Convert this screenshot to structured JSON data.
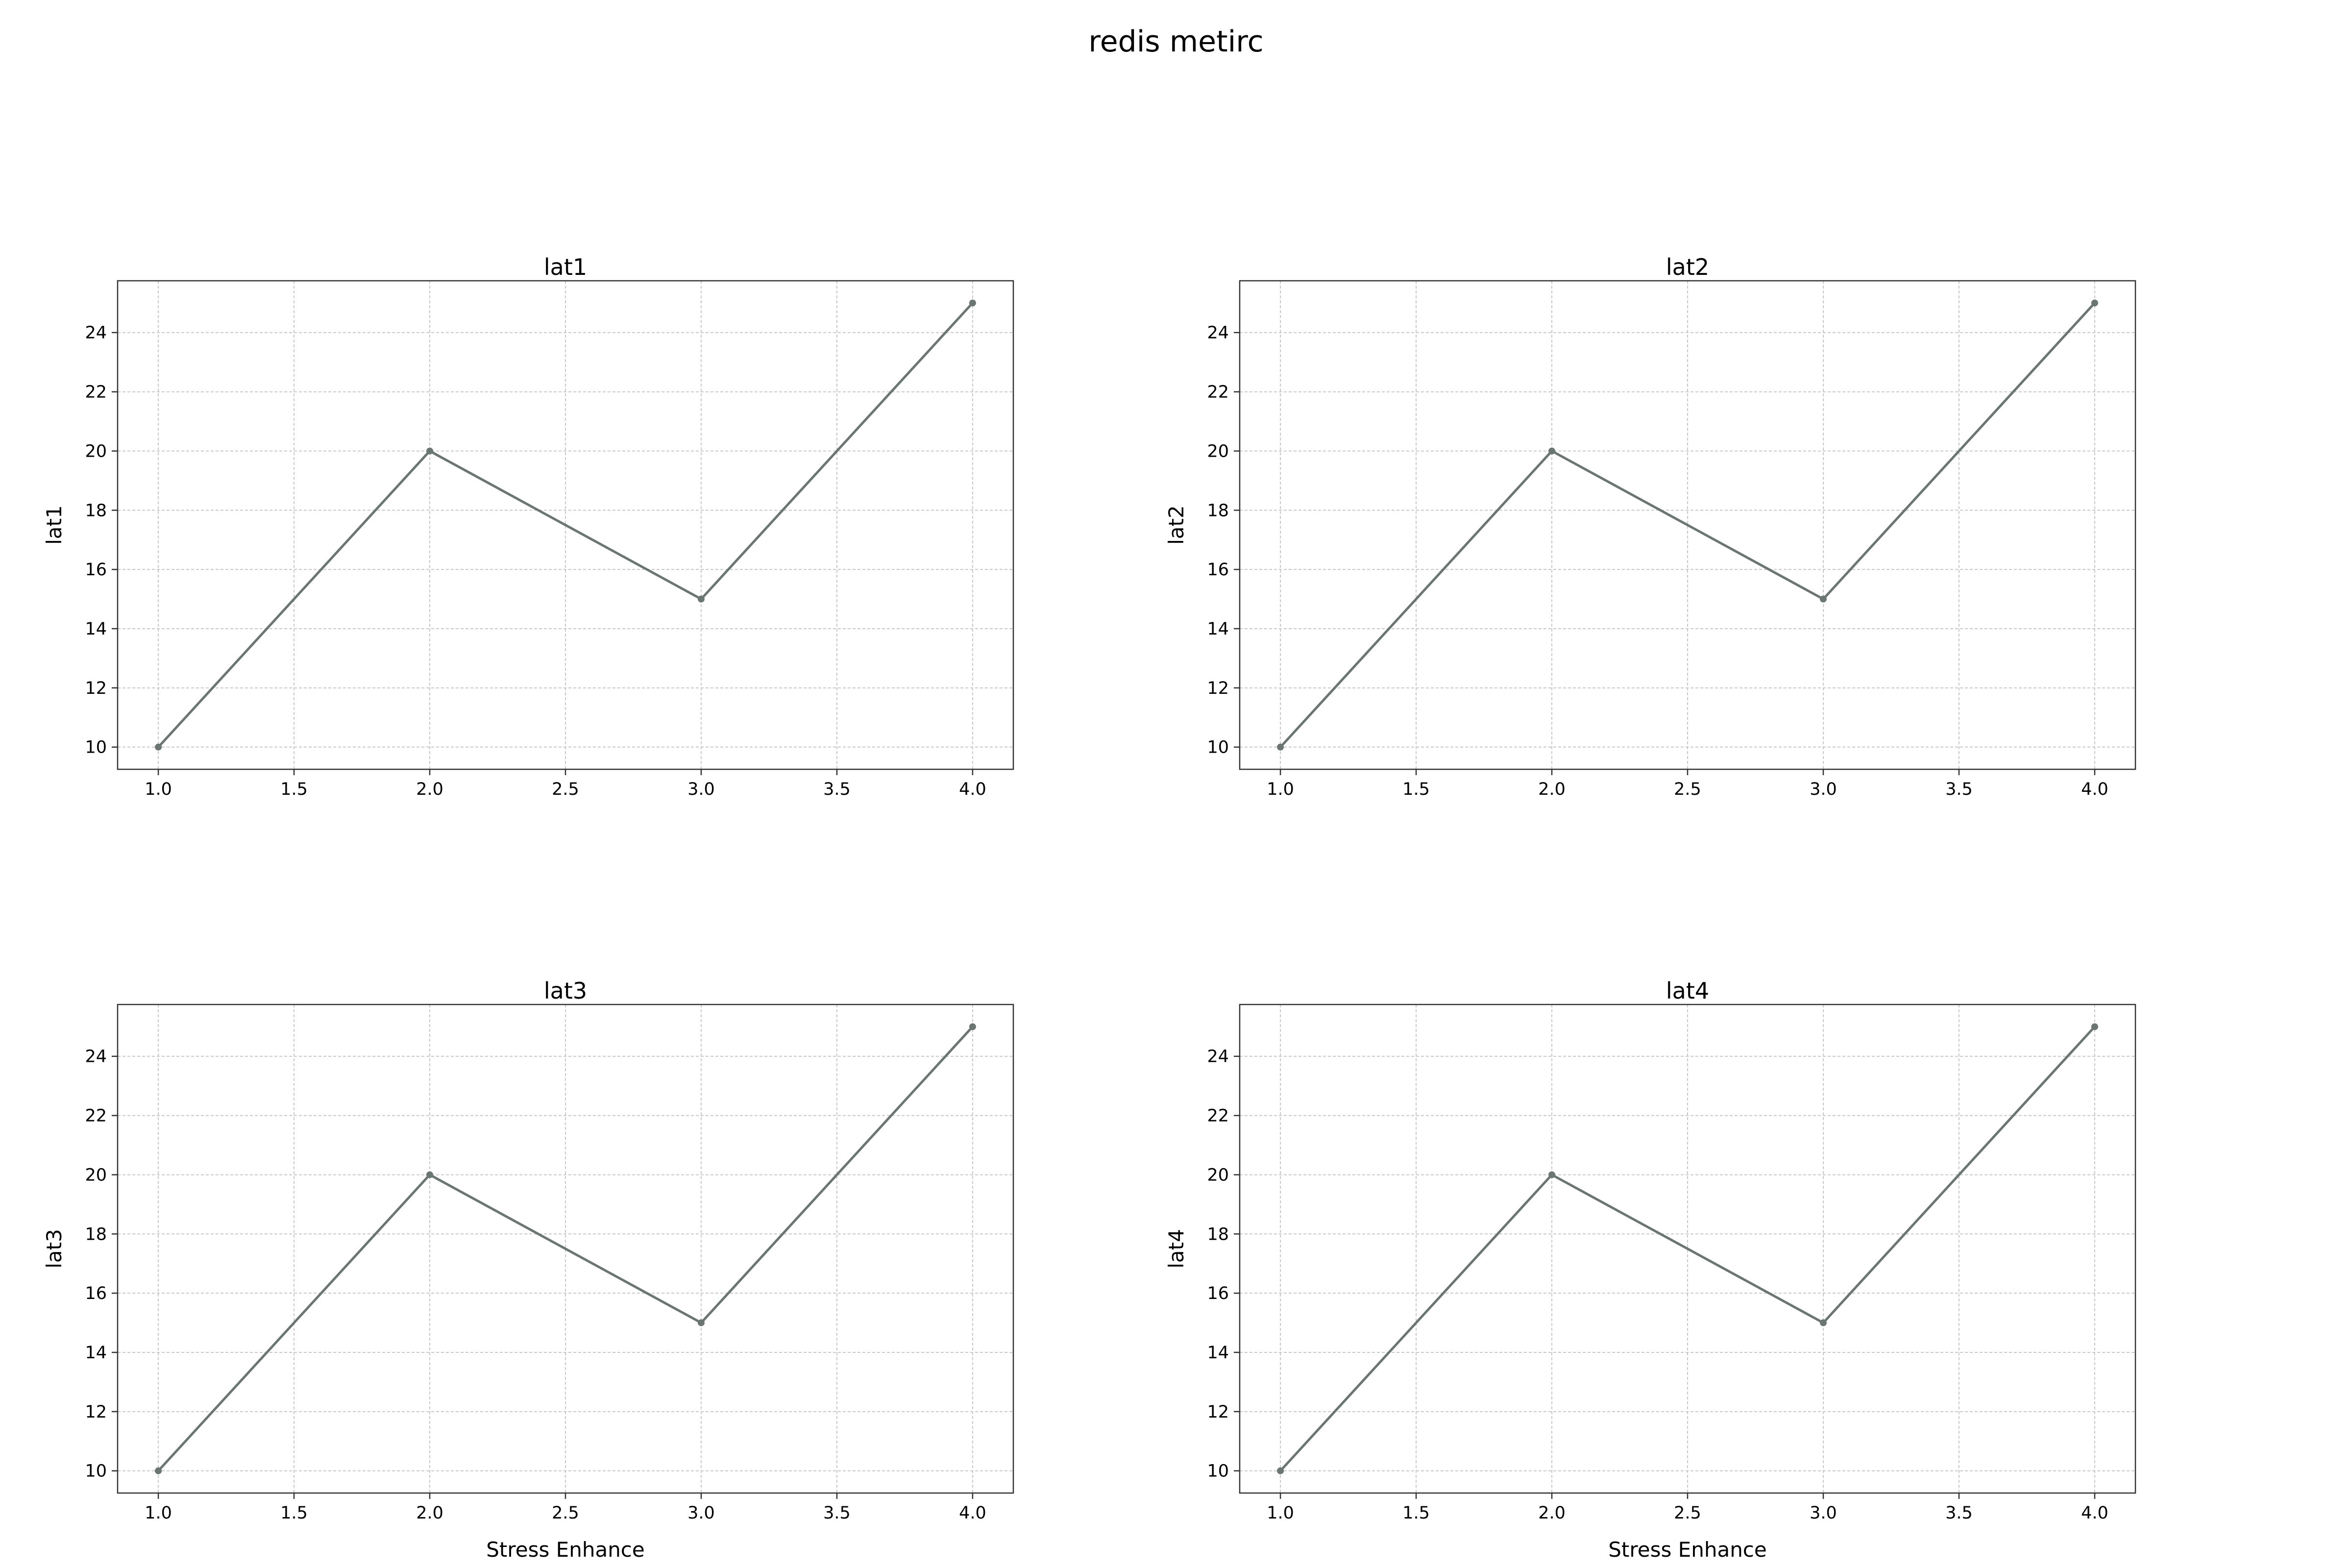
{
  "suptitle": "redis metirc",
  "colors": {
    "line": "#6b7572",
    "marker": "#6b7572",
    "grid": "#c8c8c8",
    "axes": "#333333",
    "text": "#000000"
  },
  "chart_data": [
    {
      "type": "line",
      "title": "lat1",
      "xlabel": "",
      "ylabel": "lat1",
      "x": [
        1.0,
        2.0,
        3.0,
        4.0
      ],
      "y": [
        10,
        20,
        15,
        25
      ],
      "xlim": [
        0.85,
        4.15
      ],
      "ylim": [
        9.25,
        25.75
      ],
      "xticks": [
        1.0,
        1.5,
        2.0,
        2.5,
        3.0,
        3.5,
        4.0
      ],
      "yticks": [
        10,
        12,
        14,
        16,
        18,
        20,
        22,
        24
      ],
      "grid": true
    },
    {
      "type": "line",
      "title": "lat2",
      "xlabel": "",
      "ylabel": "lat2",
      "x": [
        1.0,
        2.0,
        3.0,
        4.0
      ],
      "y": [
        10,
        20,
        15,
        25
      ],
      "xlim": [
        0.85,
        4.15
      ],
      "ylim": [
        9.25,
        25.75
      ],
      "xticks": [
        1.0,
        1.5,
        2.0,
        2.5,
        3.0,
        3.5,
        4.0
      ],
      "yticks": [
        10,
        12,
        14,
        16,
        18,
        20,
        22,
        24
      ],
      "grid": true
    },
    {
      "type": "line",
      "title": "lat3",
      "xlabel": "Stress Enhance",
      "ylabel": "lat3",
      "x": [
        1.0,
        2.0,
        3.0,
        4.0
      ],
      "y": [
        10,
        20,
        15,
        25
      ],
      "xlim": [
        0.85,
        4.15
      ],
      "ylim": [
        9.25,
        25.75
      ],
      "xticks": [
        1.0,
        1.5,
        2.0,
        2.5,
        3.0,
        3.5,
        4.0
      ],
      "yticks": [
        10,
        12,
        14,
        16,
        18,
        20,
        22,
        24
      ],
      "grid": true
    },
    {
      "type": "line",
      "title": "lat4",
      "xlabel": "Stress Enhance",
      "ylabel": "lat4",
      "x": [
        1.0,
        2.0,
        3.0,
        4.0
      ],
      "y": [
        10,
        20,
        15,
        25
      ],
      "xlim": [
        0.85,
        4.15
      ],
      "ylim": [
        9.25,
        25.75
      ],
      "xticks": [
        1.0,
        1.5,
        2.0,
        2.5,
        3.0,
        3.5,
        4.0
      ],
      "yticks": [
        10,
        12,
        14,
        16,
        18,
        20,
        22,
        24
      ],
      "grid": true
    }
  ]
}
